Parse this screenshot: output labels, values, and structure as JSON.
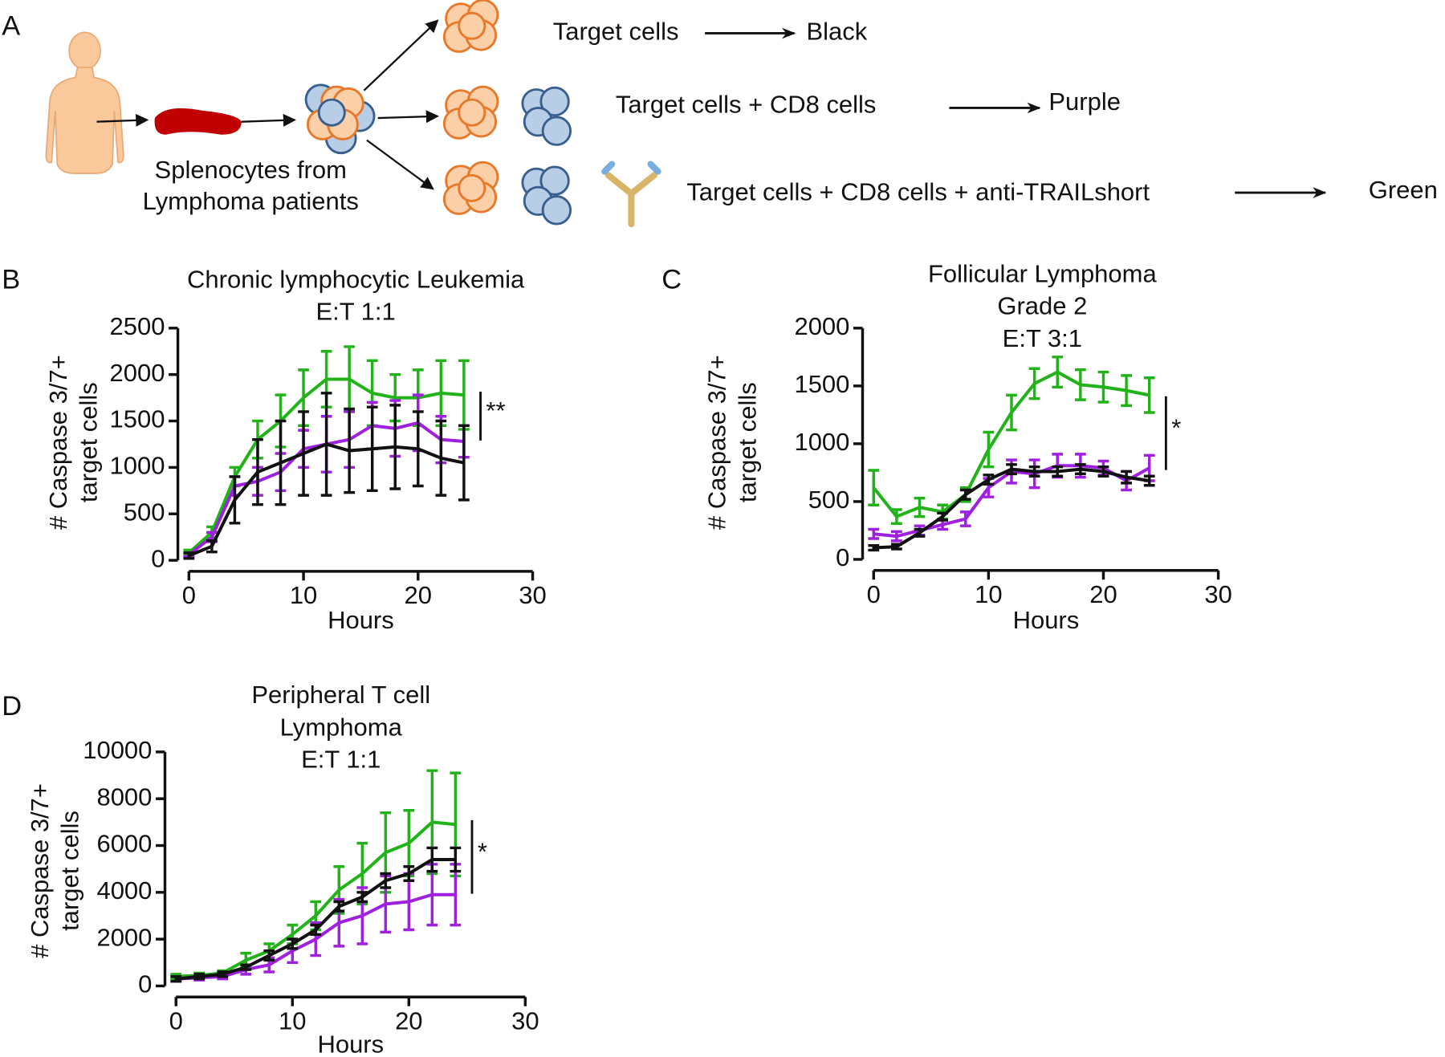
{
  "panel_labels": [
    "A",
    "B",
    "C",
    "D"
  ],
  "diagram": {
    "source_label": [
      "Splenocytes from",
      "Lymphoma patients"
    ],
    "rows": [
      {
        "condition": "Target cells",
        "color_name": "Black"
      },
      {
        "condition": "Target cells + CD8 cells",
        "color_name": "Purple"
      },
      {
        "condition": "Target cells + CD8 cells + anti-TRAILshort",
        "color_name": "Green"
      }
    ]
  },
  "chart_data": [
    {
      "type": "line",
      "title": [
        "Chronic lymphocytic Leukemia",
        "E:T 1:1"
      ],
      "xlabel": "Hours",
      "ylabel": [
        "# Caspase 3/7+",
        "target cells"
      ],
      "x": [
        0,
        2,
        4,
        6,
        8,
        10,
        12,
        14,
        16,
        18,
        20,
        22,
        24
      ],
      "xlim": [
        0,
        30
      ],
      "xticks": [
        0,
        10,
        20,
        30
      ],
      "ylim": [
        0,
        2500
      ],
      "yticks": [
        0,
        500,
        1000,
        1500,
        2000,
        2500
      ],
      "grid": false,
      "annotation": "**",
      "series": [
        {
          "color": "#22b21a",
          "values": [
            80,
            300,
            900,
            1300,
            1500,
            1750,
            1950,
            1950,
            1800,
            1750,
            1750,
            1800,
            1780
          ],
          "errors": [
            30,
            60,
            100,
            200,
            280,
            300,
            300,
            350,
            350,
            250,
            300,
            350,
            370
          ]
        },
        {
          "color": "#a020e0",
          "values": [
            60,
            250,
            800,
            850,
            950,
            1200,
            1250,
            1300,
            1450,
            1420,
            1480,
            1300,
            1280
          ],
          "errors": [
            20,
            50,
            100,
            150,
            200,
            200,
            300,
            300,
            250,
            300,
            300,
            250,
            170
          ]
        },
        {
          "color": "#111111",
          "values": [
            50,
            150,
            650,
            950,
            1050,
            1150,
            1250,
            1180,
            1200,
            1220,
            1200,
            1100,
            1050
          ],
          "errors": [
            30,
            60,
            250,
            350,
            450,
            450,
            550,
            450,
            450,
            450,
            400,
            400,
            400
          ]
        }
      ]
    },
    {
      "type": "line",
      "title": [
        "Follicular Lymphoma",
        "Grade 2",
        "E:T 3:1"
      ],
      "xlabel": "Hours",
      "ylabel": [
        "# Caspase 3/7+",
        "target cells"
      ],
      "x": [
        0,
        2,
        4,
        6,
        8,
        10,
        12,
        14,
        16,
        18,
        20,
        22,
        24
      ],
      "xlim": [
        0,
        30
      ],
      "xticks": [
        0,
        10,
        20,
        30
      ],
      "ylim": [
        0,
        2000
      ],
      "yticks": [
        0,
        500,
        1000,
        1500,
        2000
      ],
      "grid": false,
      "annotation": "*",
      "series": [
        {
          "color": "#22b21a",
          "values": [
            620,
            370,
            450,
            410,
            560,
            950,
            1270,
            1520,
            1620,
            1510,
            1490,
            1460,
            1420
          ],
          "errors": [
            150,
            60,
            80,
            60,
            60,
            150,
            150,
            130,
            130,
            130,
            130,
            130,
            150
          ]
        },
        {
          "color": "#a020e0",
          "values": [
            220,
            200,
            250,
            300,
            350,
            620,
            760,
            740,
            810,
            810,
            790,
            680,
            790
          ],
          "errors": [
            40,
            40,
            40,
            40,
            60,
            80,
            100,
            120,
            100,
            100,
            60,
            80,
            110
          ]
        },
        {
          "color": "#111111",
          "values": [
            100,
            110,
            230,
            370,
            560,
            690,
            780,
            760,
            760,
            780,
            760,
            710,
            680
          ],
          "errors": [
            20,
            20,
            30,
            30,
            40,
            40,
            40,
            40,
            40,
            40,
            40,
            50,
            40
          ]
        }
      ]
    },
    {
      "type": "line",
      "title": [
        "Peripheral T cell",
        "Lymphoma",
        "E:T 1:1"
      ],
      "xlabel": "Hours",
      "ylabel": [
        "# Caspase 3/7+",
        "target cells"
      ],
      "x": [
        0,
        2,
        4,
        6,
        8,
        10,
        12,
        14,
        16,
        18,
        20,
        22,
        24
      ],
      "xlim": [
        0,
        30
      ],
      "xticks": [
        0,
        10,
        20,
        30
      ],
      "ylim": [
        0,
        10000
      ],
      "yticks": [
        0,
        2000,
        4000,
        6000,
        8000,
        10000
      ],
      "grid": false,
      "annotation": "*",
      "series": [
        {
          "color": "#22b21a",
          "values": [
            400,
            450,
            550,
            1100,
            1500,
            2200,
            3000,
            4100,
            4800,
            5700,
            6100,
            7000,
            6900
          ],
          "errors": [
            100,
            100,
            100,
            300,
            300,
            400,
            600,
            1000,
            1300,
            1700,
            1400,
            2200,
            2200
          ]
        },
        {
          "color": "#a020e0",
          "values": [
            300,
            350,
            400,
            700,
            900,
            1500,
            2000,
            2700,
            3000,
            3500,
            3600,
            3900,
            3900
          ],
          "errors": [
            100,
            100,
            100,
            200,
            300,
            500,
            700,
            1000,
            1200,
            1200,
            1200,
            1300,
            1300
          ]
        },
        {
          "color": "#111111",
          "values": [
            300,
            400,
            500,
            800,
            1300,
            1800,
            2400,
            3400,
            3800,
            4500,
            4800,
            5400,
            5400
          ],
          "errors": [
            100,
            100,
            100,
            100,
            200,
            200,
            200,
            200,
            200,
            300,
            300,
            500,
            500
          ]
        }
      ]
    }
  ]
}
